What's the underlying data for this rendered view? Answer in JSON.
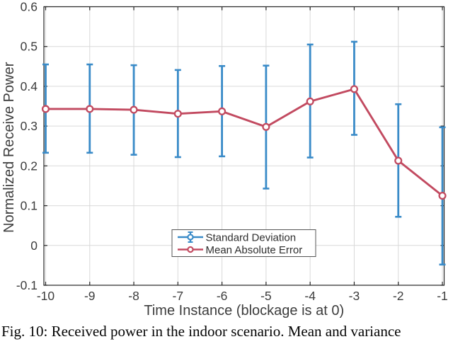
{
  "figure_caption": "Fig. 10: Received power in the indoor scenario. Mean and variance",
  "chart_data": {
    "type": "line",
    "subtype": "errorbar-line",
    "title": "",
    "xlabel": "Time Instance (blockage is at 0)",
    "ylabel": "Normalized Receive Power",
    "x": [
      -10,
      -9,
      -8,
      -7,
      -6,
      -5,
      -4,
      -3,
      -2,
      -1
    ],
    "xtick_labels": [
      "-10",
      "-9",
      "-8",
      "-7",
      "-6",
      "-5",
      "-4",
      "-3",
      "-2",
      "-1"
    ],
    "yticks": [
      -0.1,
      0,
      0.1,
      0.2,
      0.3,
      0.4,
      0.5,
      0.6
    ],
    "ytick_labels": [
      "-0.1",
      "0",
      "0.1",
      "0.2",
      "0.3",
      "0.4",
      "0.5",
      "0.6"
    ],
    "xlim": [
      -10.04,
      -0.96
    ],
    "ylim": [
      -0.1,
      0.6
    ],
    "grid": true,
    "legend_position": "south-inside",
    "series": [
      {
        "name": "Standard Deviation",
        "type": "errorbar",
        "color": "#3a8bc8",
        "upper": [
          0.455,
          0.455,
          0.453,
          0.441,
          0.451,
          0.452,
          0.505,
          0.512,
          0.355,
          0.297
        ],
        "lower": [
          0.233,
          0.233,
          0.228,
          0.222,
          0.224,
          0.143,
          0.221,
          0.278,
          0.072,
          -0.048
        ]
      },
      {
        "name": "Mean Absolute Error",
        "type": "line-markers",
        "color": "#c24a60",
        "values": [
          0.343,
          0.343,
          0.341,
          0.331,
          0.337,
          0.298,
          0.362,
          0.393,
          0.213,
          0.125
        ]
      }
    ]
  },
  "colors": {
    "background": "#ffffff",
    "grid": "#d9d9d9",
    "frame": "#262626",
    "tick_label": "#3d3d3d",
    "axis_label": "#3d3d3d",
    "legend_text": "#2e2e2e",
    "legend_border": "#555555",
    "marker_fill": "#ffffff"
  }
}
